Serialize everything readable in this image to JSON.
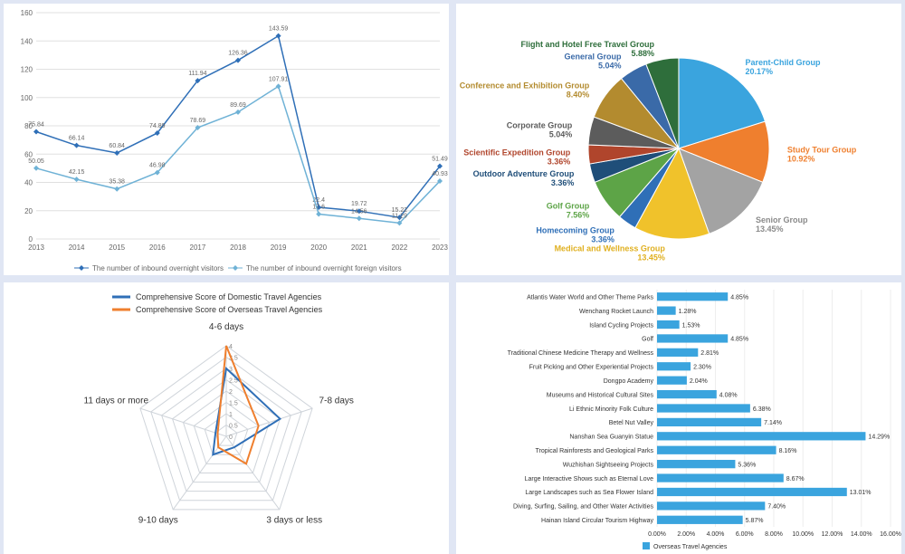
{
  "line_chart": {
    "type": "line",
    "xlabels": [
      "2013",
      "2014",
      "2015",
      "2016",
      "2017",
      "2018",
      "2019",
      "2020",
      "2021",
      "2022",
      "2023"
    ],
    "ylim": [
      0,
      160
    ],
    "ytick_step": 20,
    "series": [
      {
        "name": "The number of inbound overnight visitors",
        "color": "#2f6fb7",
        "values": [
          75.84,
          66.14,
          60.84,
          74.89,
          111.94,
          126.36,
          143.59,
          22.4,
          19.72,
          15.22,
          51.49
        ]
      },
      {
        "name": "The number of inbound overnight foreign visitors",
        "color": "#6fb2d6",
        "values": [
          50.05,
          42.15,
          35.38,
          46.98,
          78.69,
          89.69,
          107.91,
          17.6,
          14.56,
          11.29,
          40.93
        ]
      }
    ],
    "grid_color": "#e0e0e0",
    "marker": "diamond"
  },
  "pie_chart": {
    "type": "pie",
    "slices": [
      {
        "label": "Parent-Child Group",
        "pct": 20.17,
        "color": "#3aa4de"
      },
      {
        "label": "Study Tour Group",
        "pct": 10.92,
        "color": "#ef7f2e"
      },
      {
        "label": "Senior Group",
        "pct": 13.45,
        "color": "#a3a3a3"
      },
      {
        "label": "Medical and Wellness Group",
        "pct": 13.45,
        "color": "#f0c22b"
      },
      {
        "label": "Homecoming Group",
        "pct": 3.36,
        "color": "#2f6fb7"
      },
      {
        "label": "Golf Group",
        "pct": 7.56,
        "color": "#5da447"
      },
      {
        "label": "Outdoor Adventure Group",
        "pct": 3.36,
        "color": "#1f4e79"
      },
      {
        "label": "Scientific Expedition Group",
        "pct": 3.36,
        "color": "#b0452c"
      },
      {
        "label": "Corporate Group",
        "pct": 5.04,
        "color": "#5c5c5c"
      },
      {
        "label": "Conference and Exhibition Group",
        "pct": 8.4,
        "color": "#b38b2f"
      },
      {
        "label": "General Group",
        "pct": 5.04,
        "color": "#3a6aa8"
      },
      {
        "label": "Flight and Hotel Free Travel Group",
        "pct": 5.88,
        "color": "#2e6e3b"
      }
    ],
    "label_color_map": {
      "Parent-Child Group": "#3aa4de",
      "Study Tour Group": "#ef7f2e",
      "Senior Group": "#8a8a8a",
      "Medical and Wellness Group": "#e0b020",
      "Homecoming Group": "#2f6fb7",
      "Golf Group": "#5da447",
      "Outdoor Adventure Group": "#1f4e79",
      "Scientific Expedition Group": "#b0452c",
      "Corporate Group": "#5c5c5c",
      "Conference and Exhibition Group": "#b38b2f",
      "General Group": "#3a6aa8",
      "Flight and Hotel Free Travel Group": "#2e6e3b"
    }
  },
  "radar_chart": {
    "type": "radar",
    "axes": [
      "4-6 days",
      "7-8 days",
      "3 days or less",
      "9-10 days",
      "11 days or more"
    ],
    "rings": [
      0.5,
      1,
      1.5,
      2,
      2.5,
      3,
      3.5,
      4
    ],
    "max": 4,
    "series": [
      {
        "name": "Comprehensive Score of Domestic Travel Agencies",
        "color": "#2f6fb7",
        "values": [
          3.0,
          2.5,
          0.6,
          1.0,
          0.5
        ]
      },
      {
        "name": "Comprehensive Score of Overseas Travel Agencies",
        "color": "#ef7f2e",
        "values": [
          4.0,
          1.5,
          1.5,
          0.6,
          0.4
        ]
      }
    ],
    "grid_color": "#cfd4da"
  },
  "bar_chart": {
    "type": "bar-horizontal",
    "series_name": "Overseas Travel Agencies",
    "series_color": "#3aa4de",
    "xlim": [
      0,
      16
    ],
    "xtick_step": 2,
    "items": [
      {
        "label": "Atlantis Water World and Other Theme Parks",
        "pct": 4.85
      },
      {
        "label": "Wenchang Rocket Launch",
        "pct": 1.28
      },
      {
        "label": "Island Cycling Projects",
        "pct": 1.53
      },
      {
        "label": "Golf",
        "pct": 4.85
      },
      {
        "label": "Traditional Chinese Medicine Therapy and Wellness",
        "pct": 2.81
      },
      {
        "label": "Fruit Picking and Other Experiential Projects",
        "pct": 2.3
      },
      {
        "label": "Dongpo Academy",
        "pct": 2.04
      },
      {
        "label": "Museums and Historical Cultural Sites",
        "pct": 4.08
      },
      {
        "label": "Li Ethnic Minority Folk Culture",
        "pct": 6.38
      },
      {
        "label": "Betel Nut Valley",
        "pct": 7.14
      },
      {
        "label": "Nanshan Sea Guanyin Statue",
        "pct": 14.29
      },
      {
        "label": "Tropical Rainforests and Geological Parks",
        "pct": 8.16
      },
      {
        "label": "Wuzhishan Sightseeing Projects",
        "pct": 5.36
      },
      {
        "label": "Large Interactive Shows such as Eternal Love",
        "pct": 8.67
      },
      {
        "label": "Large Landscapes such as Sea Flower Island",
        "pct": 13.01
      },
      {
        "label": "Diving, Surfing, Sailing, and Other Water Activities",
        "pct": 7.4
      },
      {
        "label": "Hainan Island Circular Tourism Highway",
        "pct": 5.87
      }
    ]
  }
}
